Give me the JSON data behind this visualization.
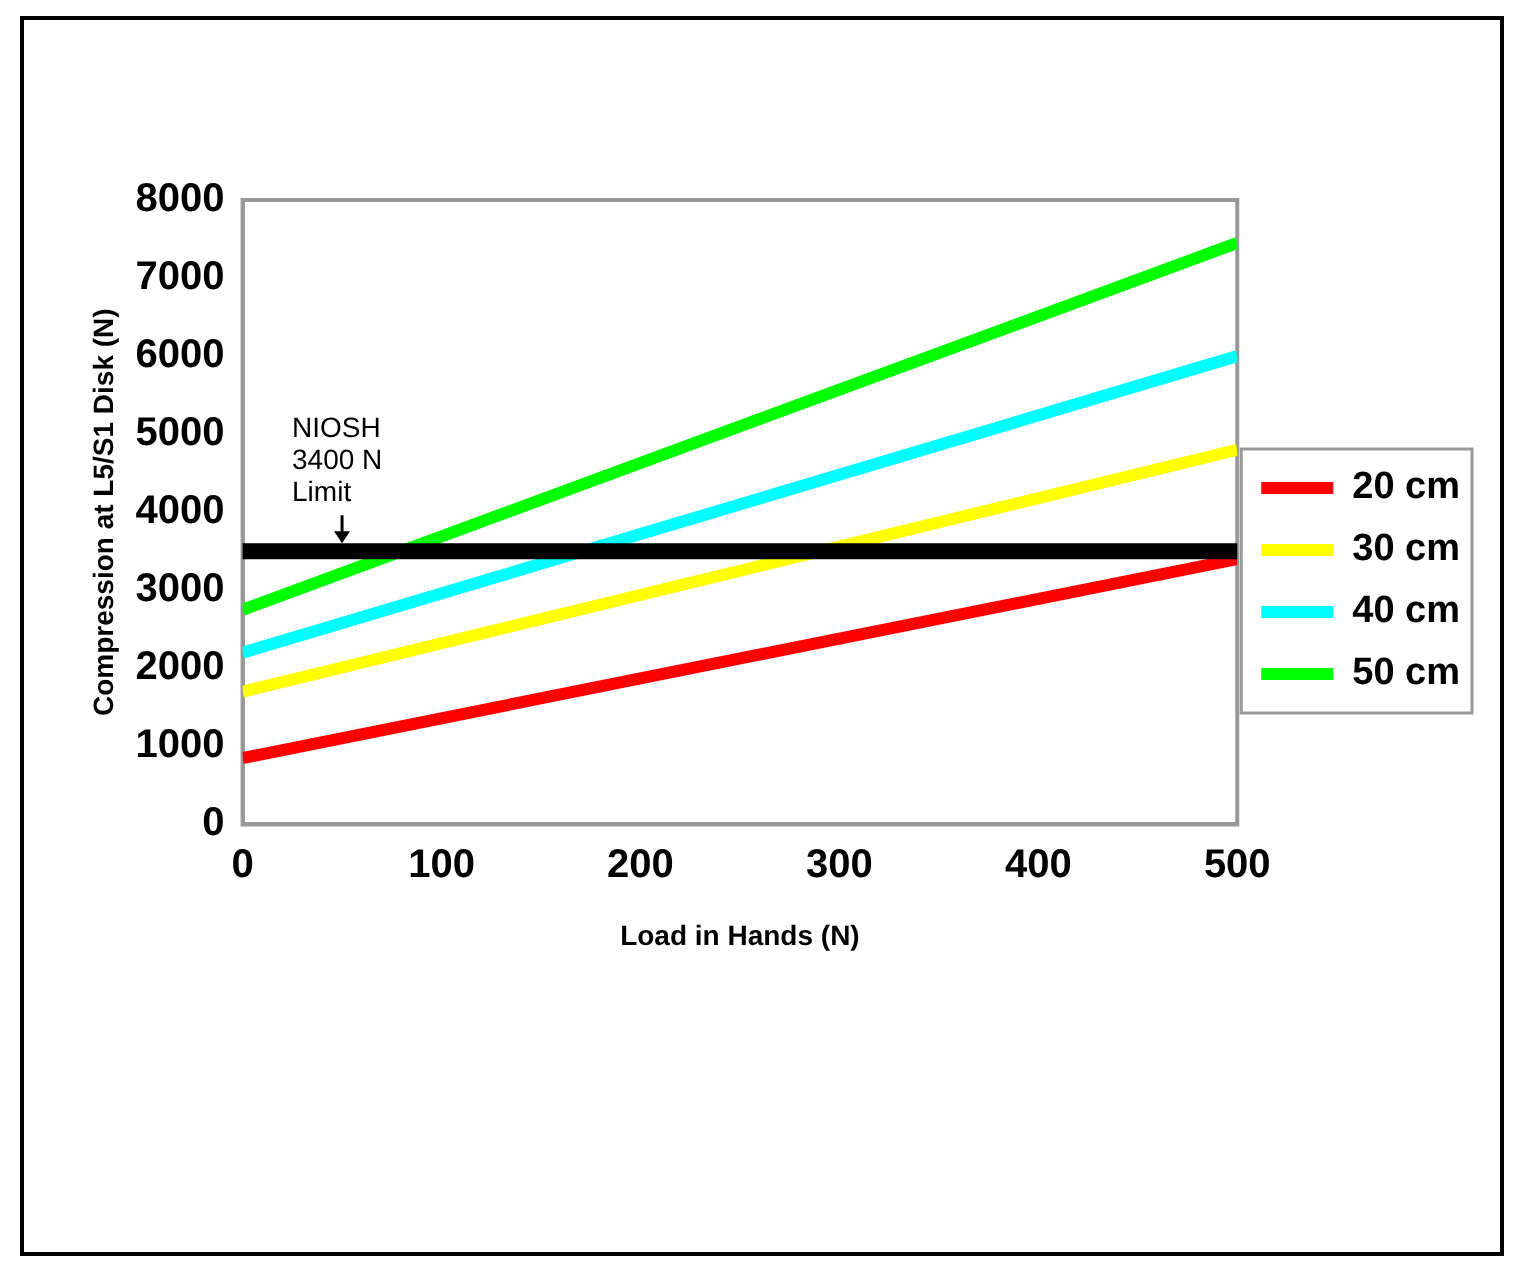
{
  "chart_data": {
    "type": "line",
    "x": [
      0,
      500
    ],
    "xlabel": "Load in Hands (N)",
    "ylabel": "Compression at L5/S1 Disk (N)",
    "xlim": [
      0,
      500
    ],
    "xticks": [
      0,
      100,
      200,
      300,
      400,
      500
    ],
    "ylim": [
      0,
      8000
    ],
    "yticks": [
      0,
      1000,
      2000,
      3000,
      4000,
      5000,
      6000,
      7000,
      8000
    ],
    "series": [
      {
        "name": "20 cm",
        "color": "#ff0000",
        "values": [
          850,
          3400
        ]
      },
      {
        "name": "30 cm",
        "color": "#ffff00",
        "values": [
          1700,
          4800
        ]
      },
      {
        "name": "40 cm",
        "color": "#00ffff",
        "values": [
          2200,
          6000
        ]
      },
      {
        "name": "50 cm",
        "color": "#00ff00",
        "values": [
          2750,
          7450
        ]
      }
    ],
    "ref_lines": [
      {
        "axis": "y",
        "value": 3500,
        "color": "#000000"
      }
    ],
    "annotations": [
      {
        "text": "NIOSH\n3400 N\nLimit",
        "x": 50,
        "y": 3500
      }
    ],
    "grid": false,
    "legend": "right",
    "marker": "none",
    "line_style": "solid"
  }
}
